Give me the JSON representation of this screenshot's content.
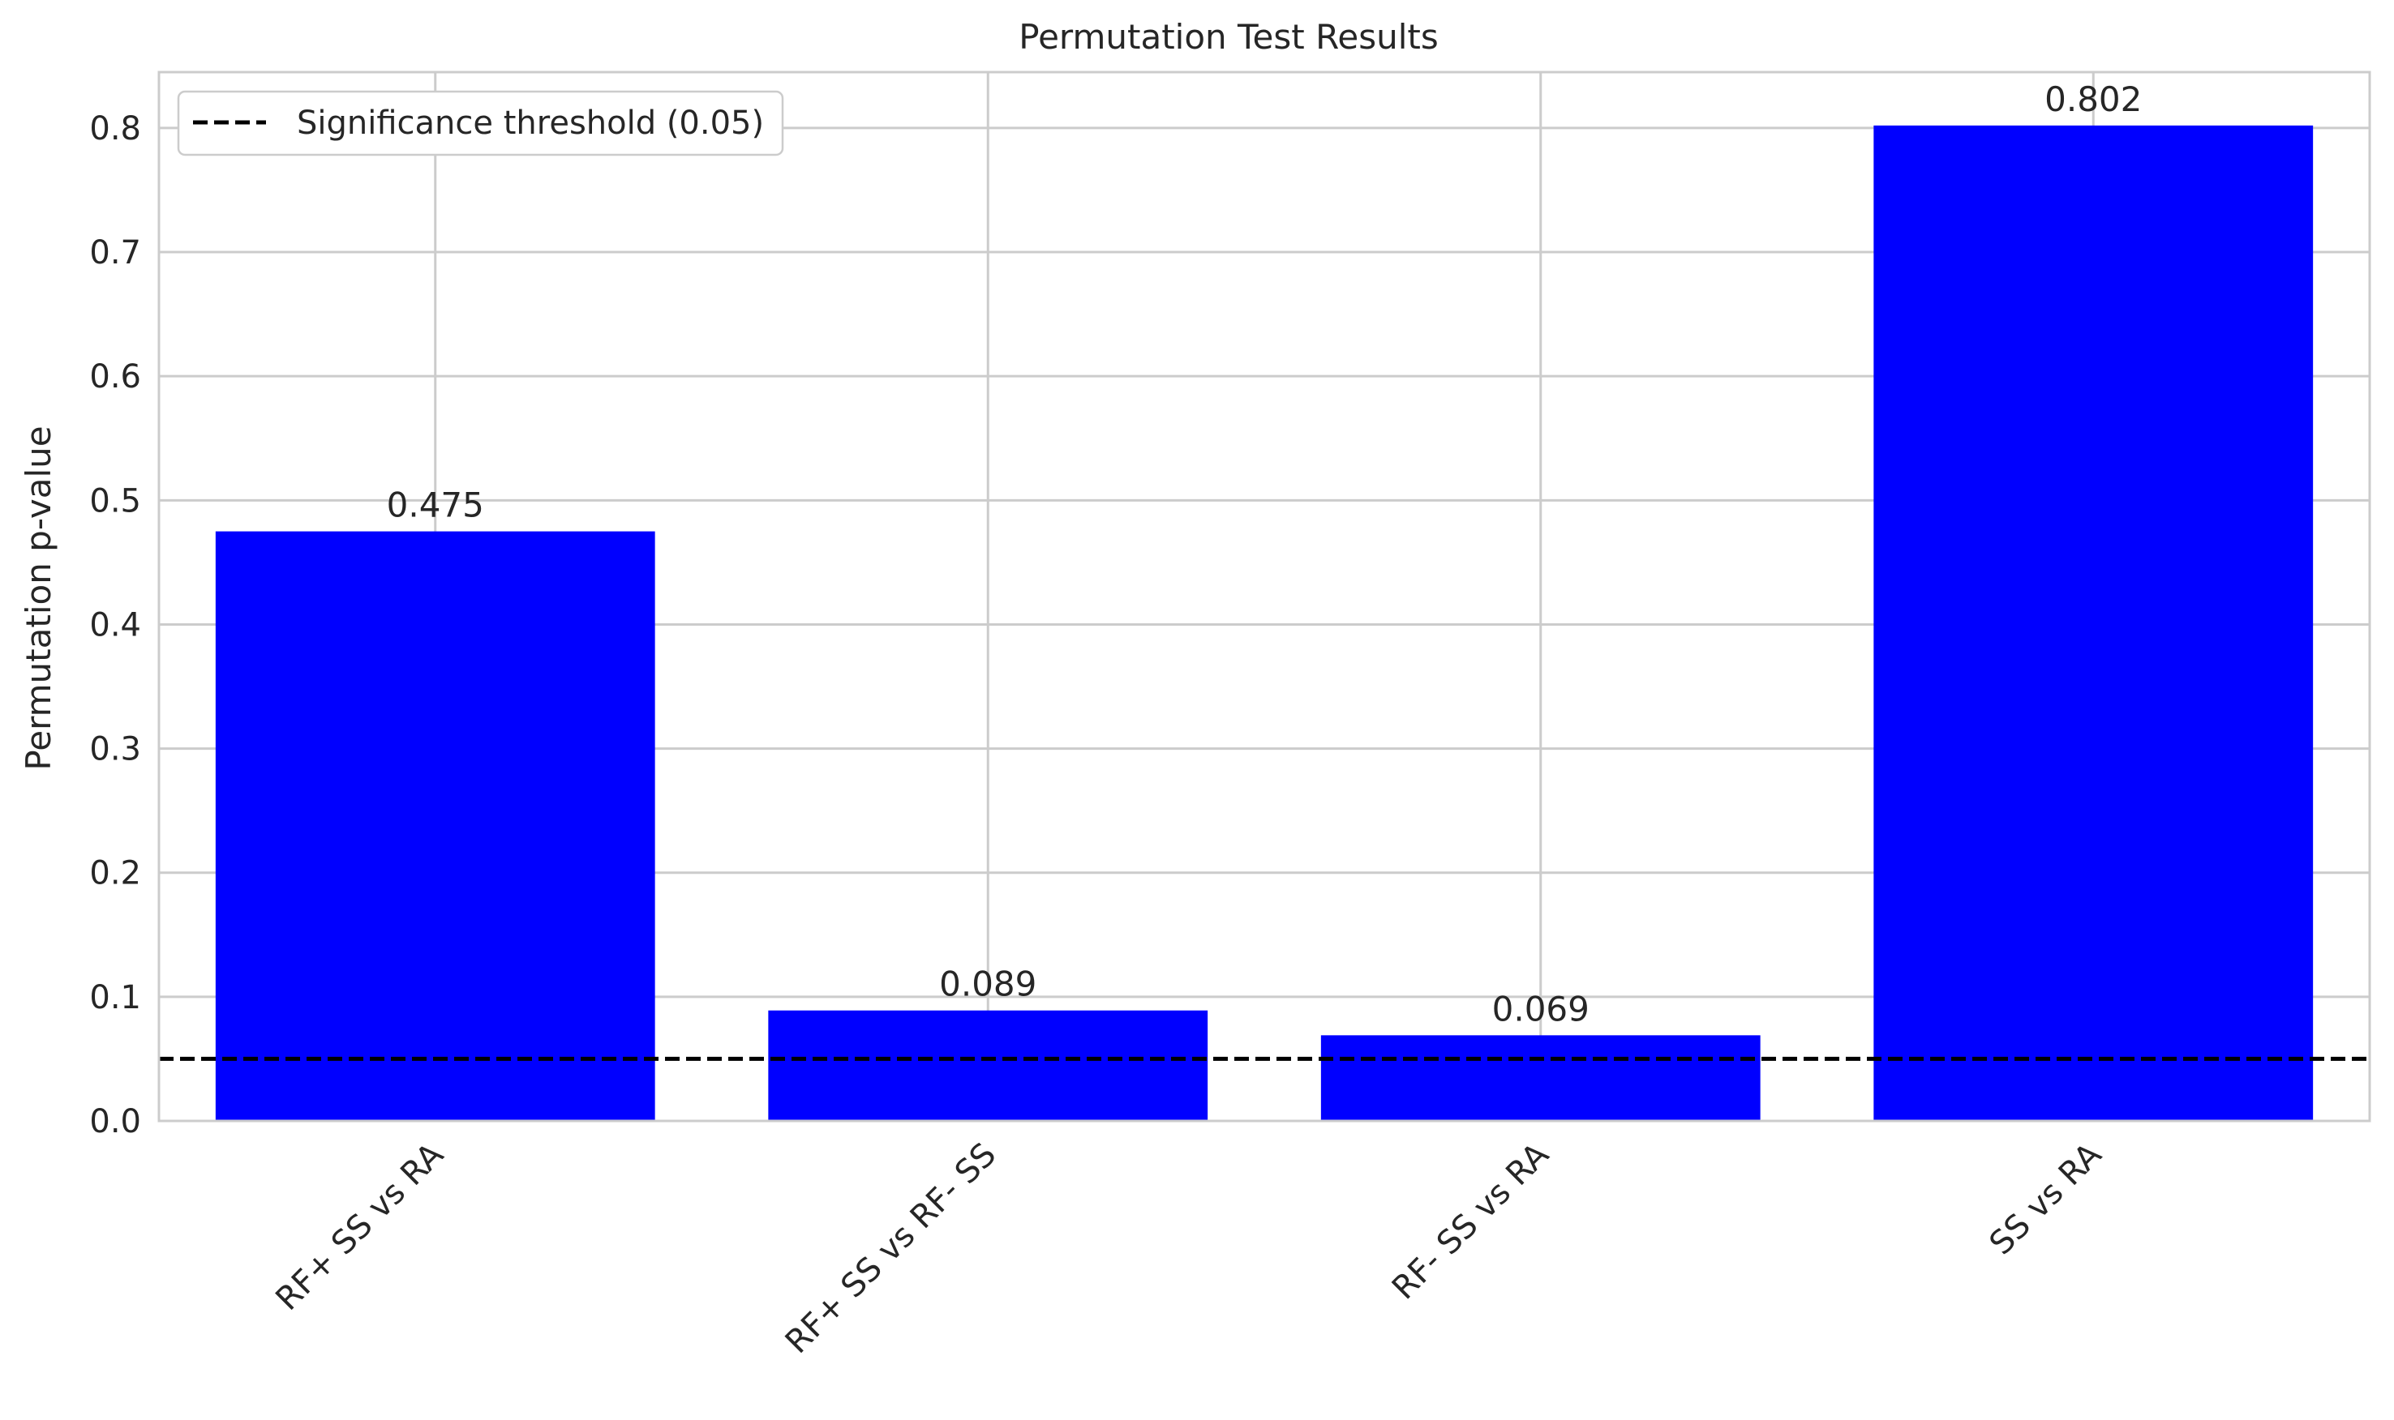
{
  "chart_data": {
    "type": "bar",
    "title": "Permutation Test Results",
    "xlabel": "",
    "ylabel": "Permutation p-value",
    "categories": [
      "RF+ SS vs RA",
      "RF+ SS vs RF- SS",
      "RF- SS vs RA",
      "SS vs RA"
    ],
    "values": [
      0.475,
      0.089,
      0.069,
      0.802
    ],
    "value_labels": [
      "0.475",
      "0.089",
      "0.069",
      "0.802"
    ],
    "ylim": [
      0,
      0.845
    ],
    "yticks": [
      0.0,
      0.1,
      0.2,
      0.3,
      0.4,
      0.5,
      0.6,
      0.7,
      0.8
    ],
    "ytick_labels": [
      "0.0",
      "0.1",
      "0.2",
      "0.3",
      "0.4",
      "0.5",
      "0.6",
      "0.7",
      "0.8"
    ],
    "threshold": {
      "value": 0.05,
      "label": "Significance threshold (0.05)",
      "style": "dashed",
      "color": "#000000"
    },
    "bar_color": "#0000ff",
    "grid": true,
    "legend": "top-left",
    "xtick_rotation_deg": 45
  }
}
